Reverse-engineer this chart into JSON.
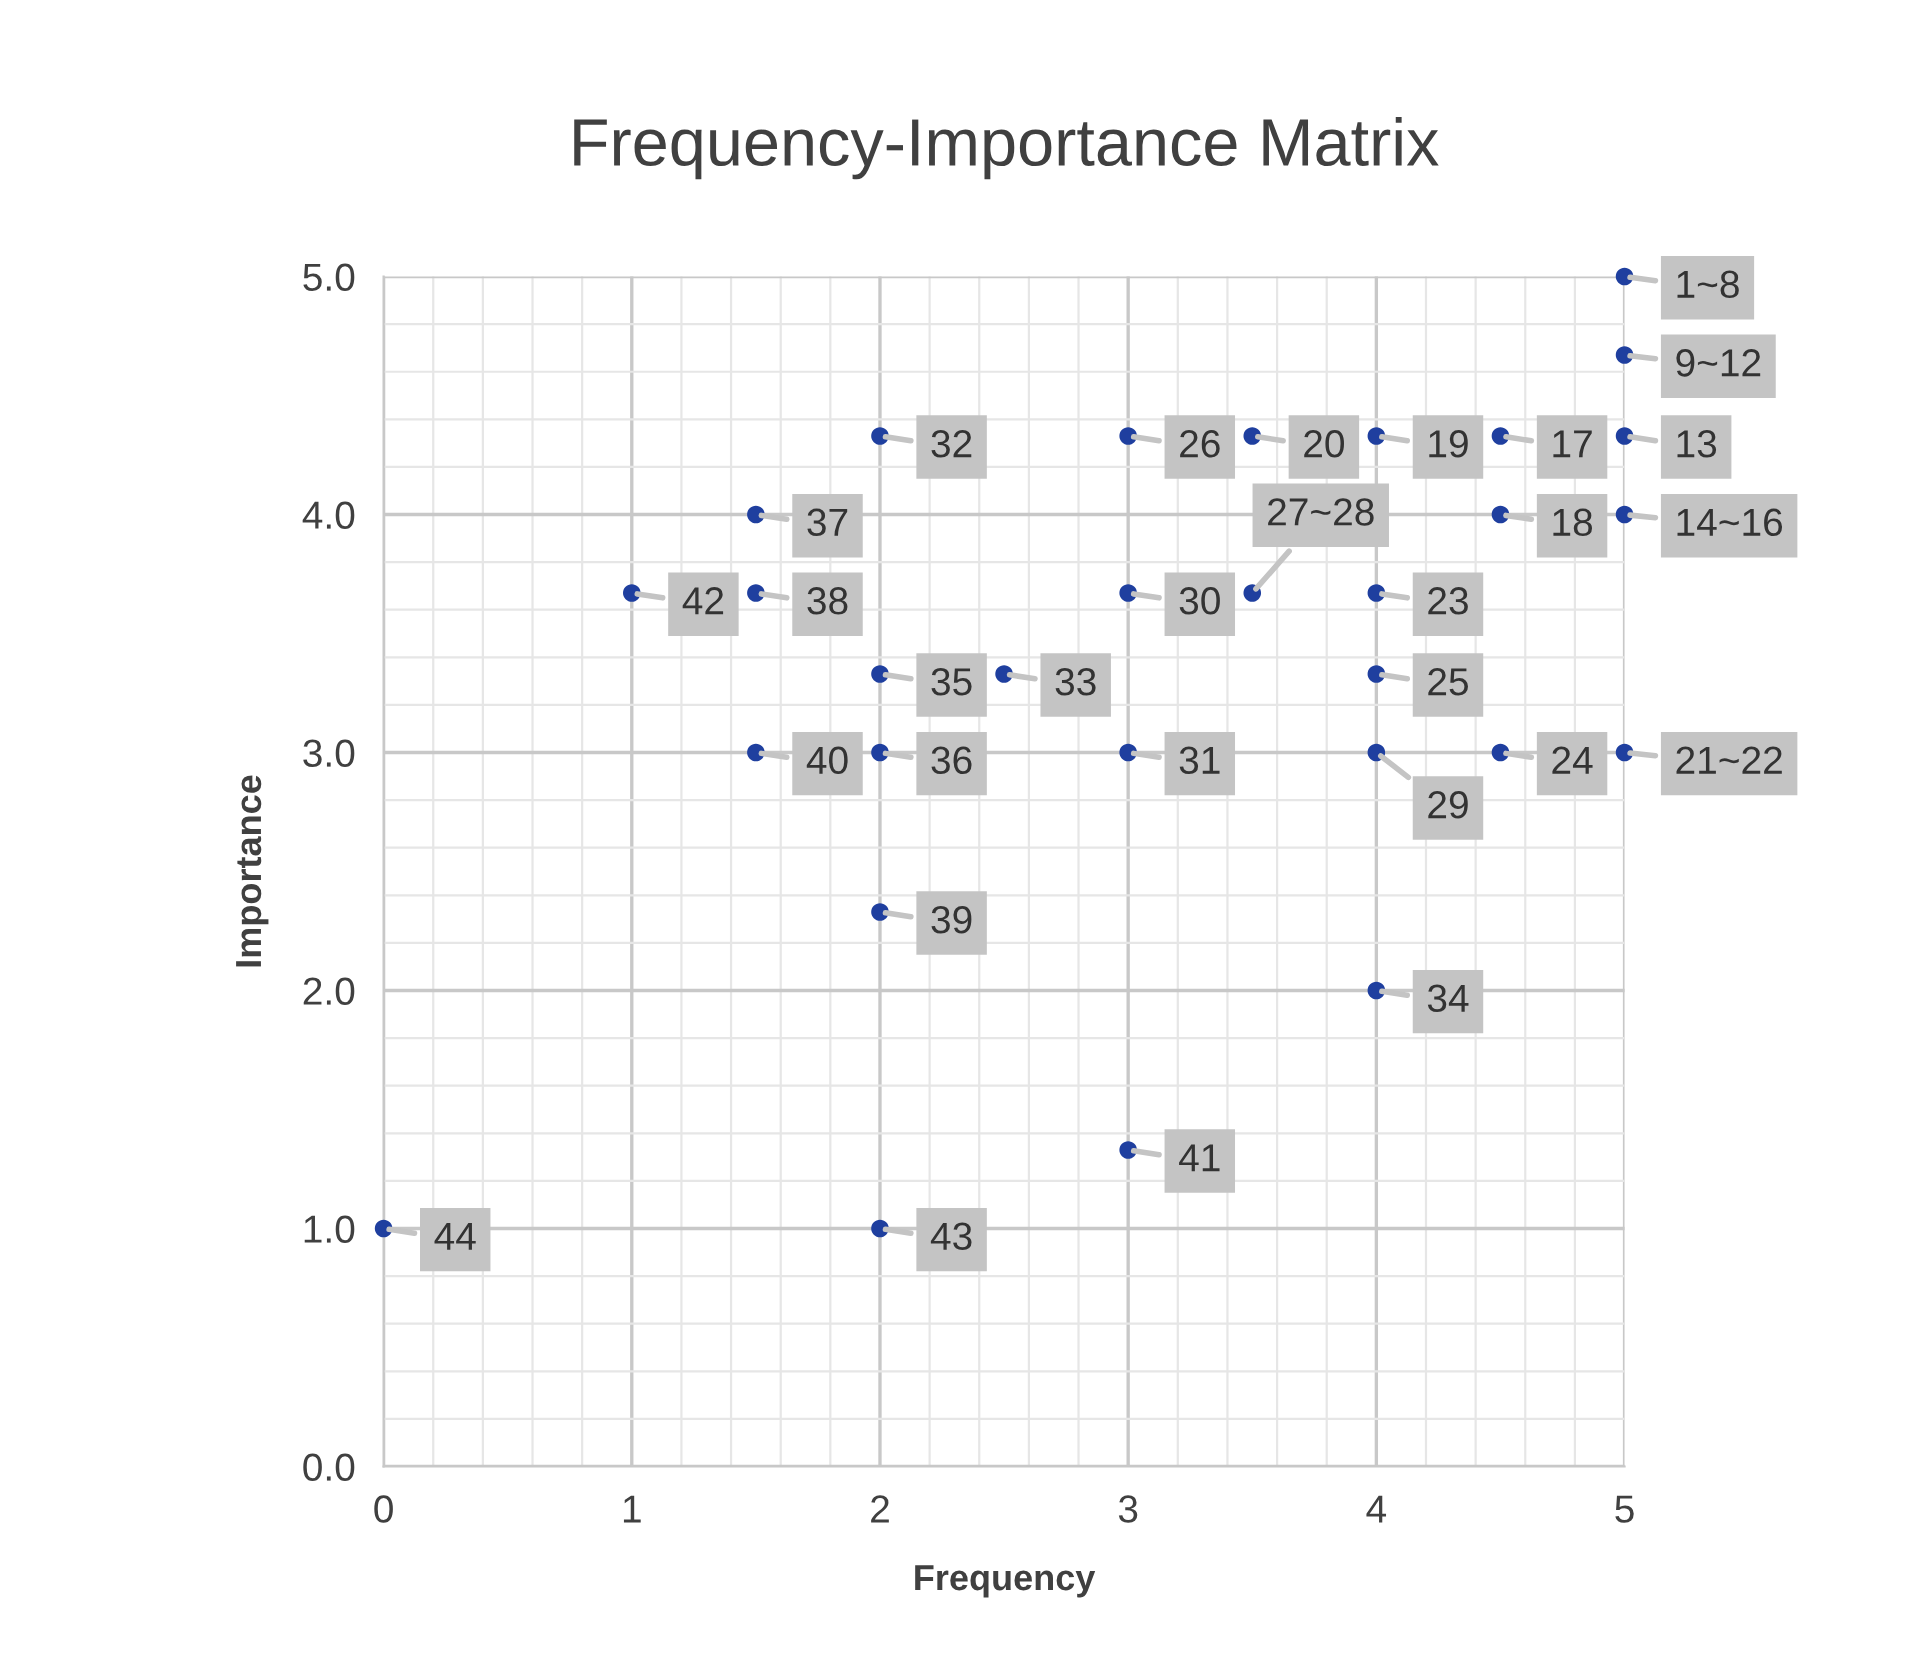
{
  "chart_data": {
    "type": "scatter",
    "title": "Frequency-Importance Matrix",
    "xlabel": "Frequency",
    "ylabel": "Importance",
    "xlim": [
      0,
      5
    ],
    "ylim": [
      0,
      5
    ],
    "xticks": [
      0,
      1,
      2,
      3,
      4,
      5
    ],
    "yticks": [
      {
        "value": 0,
        "label": "0.0"
      },
      {
        "value": 1,
        "label": "1.0"
      },
      {
        "value": 2,
        "label": "2.0"
      },
      {
        "value": 3,
        "label": "3.0"
      },
      {
        "value": 4,
        "label": "4.0"
      },
      {
        "value": 5,
        "label": "5.0"
      }
    ],
    "grid": true,
    "legend": false,
    "marker": "circle",
    "series": [
      {
        "color": "#1f3f9f",
        "x": [
          5,
          5,
          5,
          5,
          4.5,
          4.5,
          4,
          3.5,
          5,
          4,
          4.5,
          4,
          3,
          3.5,
          4,
          3,
          3,
          2,
          2.5,
          4,
          2,
          2,
          1.5,
          1.5,
          2,
          1.5,
          3,
          1,
          2,
          0
        ],
        "values": [
          5,
          4.67,
          4.33,
          4,
          4.33,
          4,
          4.33,
          4.33,
          3,
          3.67,
          3,
          3.33,
          4.33,
          3.67,
          3,
          3.67,
          3,
          4.33,
          3.33,
          2,
          3.33,
          3,
          4,
          3.67,
          2.33,
          3,
          1.33,
          3.67,
          1,
          1
        ]
      }
    ],
    "annotations": [
      {
        "text": "1~8",
        "x": 5,
        "y": 5
      },
      {
        "text": "9~12",
        "x": 5,
        "y": 4.67
      },
      {
        "text": "13",
        "x": 5,
        "y": 4.33
      },
      {
        "text": "14~16",
        "x": 5,
        "y": 4
      },
      {
        "text": "17",
        "x": 4.5,
        "y": 4.33
      },
      {
        "text": "18",
        "x": 4.5,
        "y": 4
      },
      {
        "text": "19",
        "x": 4,
        "y": 4.33
      },
      {
        "text": "20",
        "x": 3.5,
        "y": 4.33
      },
      {
        "text": "21~22",
        "x": 5,
        "y": 3
      },
      {
        "text": "23",
        "x": 4,
        "y": 3.67
      },
      {
        "text": "24",
        "x": 4.5,
        "y": 3
      },
      {
        "text": "25",
        "x": 4,
        "y": 3.33
      },
      {
        "text": "26",
        "x": 3,
        "y": 4.33
      },
      {
        "text": "27~28",
        "x": 3.5,
        "y": 3.67
      },
      {
        "text": "29",
        "x": 4,
        "y": 3
      },
      {
        "text": "30",
        "x": 3,
        "y": 3.67
      },
      {
        "text": "31",
        "x": 3,
        "y": 3
      },
      {
        "text": "32",
        "x": 2,
        "y": 4.33
      },
      {
        "text": "33",
        "x": 2.5,
        "y": 3.33
      },
      {
        "text": "34",
        "x": 4,
        "y": 2
      },
      {
        "text": "35",
        "x": 2,
        "y": 3.33
      },
      {
        "text": "36",
        "x": 2,
        "y": 3
      },
      {
        "text": "37",
        "x": 1.5,
        "y": 4
      },
      {
        "text": "38",
        "x": 1.5,
        "y": 3.67
      },
      {
        "text": "39",
        "x": 2,
        "y": 2.33
      },
      {
        "text": "40",
        "x": 1.5,
        "y": 3
      },
      {
        "text": "41",
        "x": 3,
        "y": 1.33
      },
      {
        "text": "42",
        "x": 1,
        "y": 3.67
      },
      {
        "text": "43",
        "x": 2,
        "y": 1
      },
      {
        "text": "44",
        "x": 0,
        "y": 1
      }
    ]
  }
}
